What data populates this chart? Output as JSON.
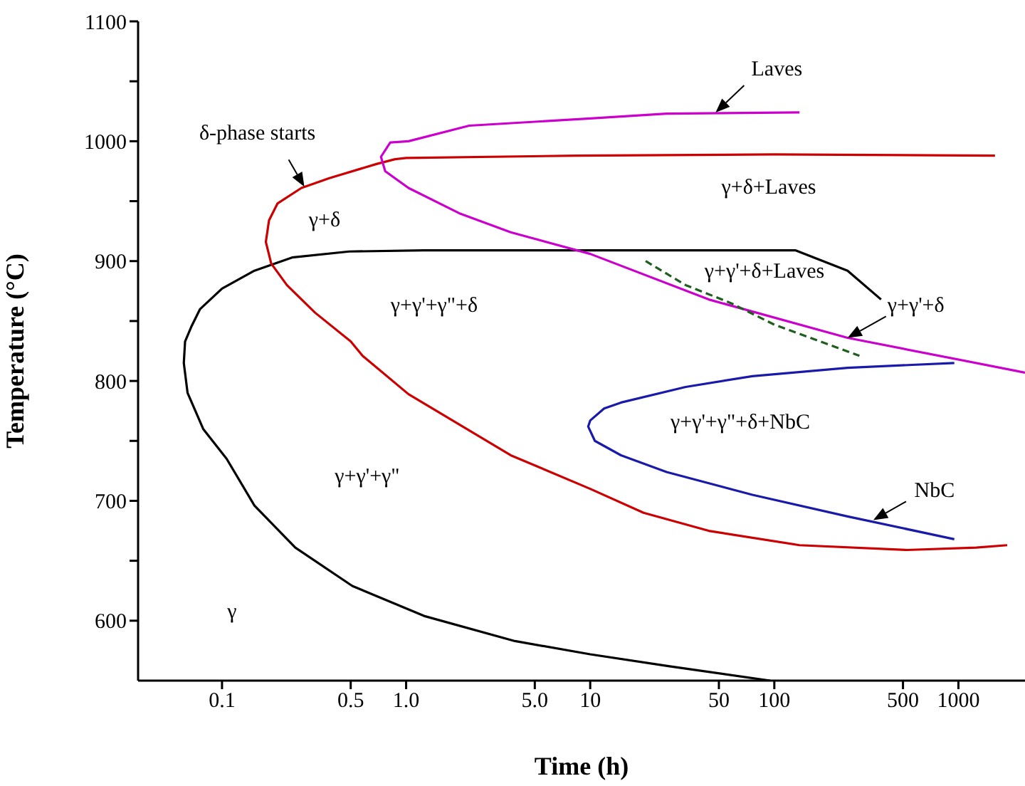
{
  "chart_data": {
    "type": "line",
    "xlabel": "Time (h)",
    "ylabel": "Temperature (°C)",
    "log": "x",
    "xlim": [
      0.035,
      2300
    ],
    "xticks": [
      0.1,
      0.5,
      {
        "value": 1,
        "label": "1.0"
      },
      {
        "value": 5,
        "label": "5.0"
      },
      10,
      50,
      100,
      500,
      1000
    ],
    "ylim": [
      550,
      1100
    ],
    "yticks": [
      600,
      {
        "value": 650,
        "label": null
      },
      700,
      {
        "value": 750,
        "label": null
      },
      800,
      {
        "value": 850,
        "label": null
      },
      900,
      {
        "value": 950,
        "label": null
      },
      1000,
      {
        "value": 1050,
        "label": null
      },
      1100
    ],
    "series": [
      {
        "color": "#000000",
        "x": [
          95,
          27,
          10,
          3.9,
          1.25,
          0.51,
          0.25,
          0.15,
          0.106,
          0.079,
          0.065,
          0.062,
          0.063,
          0.068,
          0.076,
          0.1,
          0.15,
          0.24,
          0.49,
          1.25,
          10,
          130,
          250,
          380
        ],
        "values": [
          550,
          562,
          572,
          583,
          604,
          629,
          661,
          696,
          735,
          760,
          790,
          815,
          833,
          845,
          860,
          877,
          892,
          903,
          908,
          909,
          909,
          909,
          892,
          868
        ]
      },
      {
        "color": "#cc0000",
        "x": [
          1580,
          100,
          8.5,
          1,
          0.87,
          0.69,
          0.38,
          0.27,
          0.2,
          0.18,
          0.173,
          0.185,
          0.225,
          0.32,
          0.5,
          0.58,
          1.03,
          3.7,
          10,
          19.5,
          44,
          137,
          525,
          1250,
          1840
        ],
        "values": [
          988,
          989,
          988,
          986,
          985,
          981,
          969,
          961,
          948,
          934,
          916,
          898,
          880,
          857,
          833,
          821,
          789,
          738,
          710,
          690,
          675,
          663,
          659,
          661,
          663
        ]
      },
      {
        "color": "#cc00cc",
        "x": [
          137,
          26,
          10,
          2.2,
          1.03,
          0.82,
          0.73,
          0.77,
          1.03,
          1.94,
          3.7,
          10,
          44,
          250,
          2300
        ],
        "values": [
          1024,
          1023,
          1019,
          1013,
          1000,
          999,
          987,
          975,
          961,
          940,
          924,
          906,
          868,
          836,
          807
        ]
      },
      {
        "color": "#1a1aaa",
        "x": [
          950,
          250,
          76,
          33,
          14.7,
          11.9,
          10,
          9.75,
          10.6,
          14.7,
          26,
          76,
          250,
          950
        ],
        "values": [
          815,
          811,
          804,
          795,
          782,
          777,
          767,
          762,
          750,
          738,
          724,
          705,
          687,
          668
        ]
      },
      {
        "color": "#1e5e1e",
        "line_style": "dashed",
        "x": [
          20,
          33,
          58,
          100,
          290
        ],
        "values": [
          900,
          880,
          865,
          847,
          821
        ]
      }
    ],
    "annotations": [
      "γ+δ",
      "γ+γ'+γ\"+δ",
      "γ+δ+Laves",
      "γ+γ'+δ+Laves",
      "γ+γ'+γ\"+δ+NbC",
      "γ+γ'+γ\"",
      "γ",
      {
        "text": "Laves",
        "x": 48,
        "y": 1024
      },
      {
        "text": "δ-phase starts",
        "x": 0.28,
        "y": 962
      },
      {
        "text": "γ+γ'+δ",
        "x": 250,
        "y": 836
      },
      {
        "text": "NbC",
        "x": 345,
        "y": 684
      }
    ]
  }
}
